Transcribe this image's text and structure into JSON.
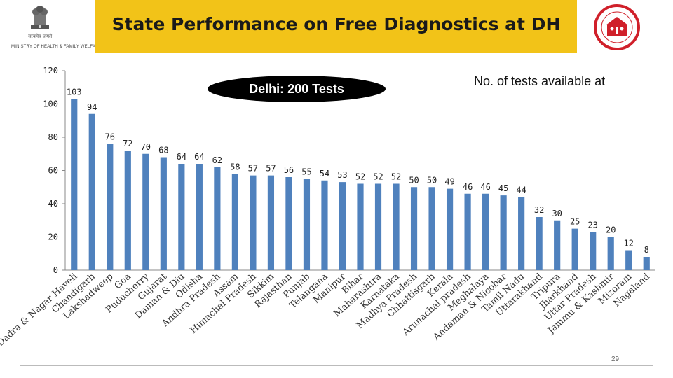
{
  "header": {
    "title": "State Performance on Free Diagnostics at DH",
    "ministry": "MINISTRY OF HEALTH & FAMILY WELFARE",
    "ministry_hindi": "सत्यमेव जयते"
  },
  "annotations": {
    "no_of_tests": "No. of tests available at",
    "delhi": "Delhi: 200 Tests"
  },
  "page_number": "29",
  "colors": {
    "bar": "#4f81bd",
    "title_band": "#f2c318",
    "nhm_red": "#d0202a"
  },
  "chart_data": {
    "type": "bar",
    "title": "State Performance on Free Diagnostics at DH",
    "xlabel": "",
    "ylabel": "",
    "ylim": [
      0,
      120
    ],
    "yticks": [
      0,
      20,
      40,
      60,
      80,
      100,
      120
    ],
    "grid": false,
    "categories": [
      "Dadra & Nagar Haveli",
      "Chandigarh",
      "Lakshadweep",
      "Goa",
      "Puducherry",
      "Gujarat",
      "Daman & Diu",
      "Odisha",
      "Andhra Pradesh",
      "Assam",
      "Himachal Pradesh",
      "Sikkim",
      "Rajasthan",
      "Punjab",
      "Telangana",
      "Manipur",
      "Bihar",
      "Maharashtra",
      "Karnataka",
      "Madhya Pradesh",
      "Chhattisgarh",
      "Kerala",
      "Arunachal pradesh",
      "Meghalaya",
      "Andaman & Nicobar",
      "Tamil Nadu",
      "Uttarakhand",
      "Tripura",
      "Jharkhand",
      "Uttar Pradesh",
      "Jammu & Kashmir",
      "Mizoram",
      "Nagaland"
    ],
    "values": [
      103,
      94,
      76,
      72,
      70,
      68,
      64,
      64,
      62,
      58,
      57,
      57,
      56,
      55,
      54,
      53,
      52,
      52,
      52,
      50,
      50,
      49,
      46,
      46,
      45,
      44,
      32,
      30,
      25,
      23,
      20,
      12,
      8
    ]
  }
}
